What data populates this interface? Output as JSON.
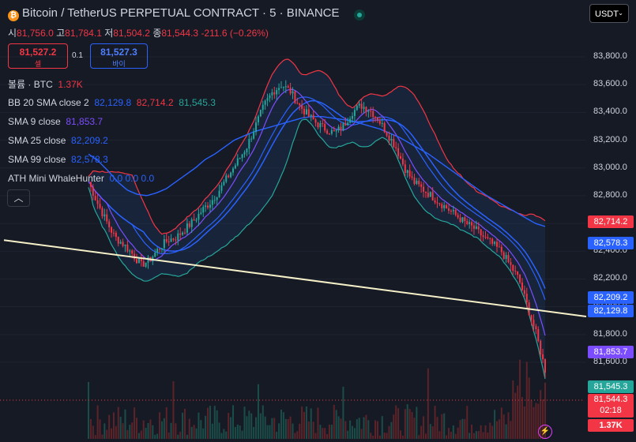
{
  "header": {
    "title": "Bitcoin / TetherUS PERPETUAL CONTRACT · 5 · BINANCE",
    "coin_icon": "bitcoin-icon",
    "live_indicator_color": "#26a69a"
  },
  "ohlc": {
    "open_label": "시",
    "open": "81,756.0",
    "high_label": "고",
    "high": "81,784.1",
    "low_label": "저",
    "low": "81,504.2",
    "close_label": "종",
    "close": "81,544.3",
    "change": "-211.6 (−0.26%)"
  },
  "order": {
    "sell_price": "81,527.2",
    "sell_label": "셀",
    "spread": "0.1",
    "buy_price": "81,527.3",
    "buy_label": "바이"
  },
  "currency_select": {
    "value": "USDT"
  },
  "legend": {
    "volume": {
      "label": "볼륨 · BTC",
      "value": "1.37K"
    },
    "bb": {
      "label": "BB 20 SMA close 2",
      "basis": "82,129.8",
      "upper": "82,714.2",
      "lower": "81,545.3"
    },
    "sma9": {
      "label": "SMA 9 close",
      "value": "81,853.7"
    },
    "sma25": {
      "label": "SMA 25 close",
      "value": "82,209.2"
    },
    "sma99": {
      "label": "SMA 99 close",
      "value": "82,578.3"
    },
    "ath": {
      "label": "ATH Mini WhaleHunter",
      "values": "0.0 0.0 0.0"
    }
  },
  "price_labels": {
    "bb_upper": "82,714.2",
    "sma99": "82,578.3",
    "sma25": "82,209.2",
    "bb_basis": "82,129.8",
    "sma9": "81,853.7",
    "bb_lower": "81,545.3",
    "last": "81,544.3",
    "countdown": "02:18",
    "volume": "1.37K"
  },
  "colors": {
    "up": "#26a69a",
    "down": "#f23645",
    "bb_upper": "#f23645",
    "bb_lower": "#26a69a",
    "bb_basis": "#2962ff",
    "sma9": "#7c4dff",
    "sma25": "#2962ff",
    "sma99": "#2962ff",
    "trendline": "#f5f0c8"
  },
  "chart_data": {
    "type": "candlestick",
    "y_axis_ticks": [
      "83,800.0",
      "83,600.0",
      "83,400.0",
      "83,200.0",
      "83,000.0",
      "82,800.0",
      "82,600.0",
      "82,400.0",
      "82,200.0",
      "82,000.0",
      "81,800.0",
      "81,600.0"
    ],
    "ylim": [
      81400,
      83920
    ],
    "trendline": {
      "start": 82480,
      "end": 81930
    },
    "close_path": [
      82900,
      82750,
      82620,
      82500,
      82450,
      82380,
      82300,
      82340,
      82420,
      82480,
      82500,
      82560,
      82620,
      82700,
      82760,
      82850,
      82950,
      83050,
      83150,
      83300,
      83450,
      83550,
      83600,
      83550,
      83450,
      83380,
      83320,
      83280,
      83250,
      83300,
      83400,
      83450,
      83420,
      83350,
      83250,
      83150,
      83000,
      82900,
      82850,
      82800,
      82750,
      82700,
      82650,
      82600,
      82560,
      82500,
      82450,
      82400,
      82300,
      82200,
      82000,
      81800,
      81544.3
    ],
    "sma99_path": [
      83100,
      83050,
      82980,
      82900,
      82840,
      82810,
      82800,
      82820,
      82850,
      82900,
      82950,
      83000,
      83060,
      83100,
      83150,
      83200,
      83230,
      83260,
      83280,
      83300,
      83320,
      83340,
      83360,
      83370,
      83370,
      83360,
      83350,
      83340,
      83320,
      83300,
      83280,
      83250,
      83220,
      83180,
      83140,
      83100,
      83050,
      83000,
      82950,
      82900,
      82850,
      82800,
      82760,
      82720,
      82680,
      82640,
      82600,
      82578.3
    ],
    "volume_max": 1.37
  }
}
